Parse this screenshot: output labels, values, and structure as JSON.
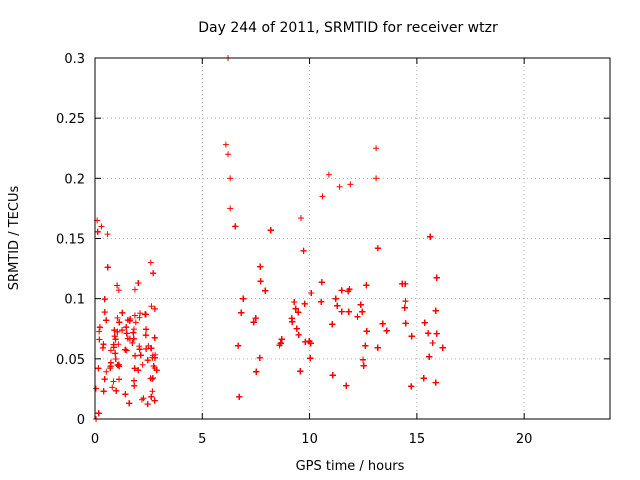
{
  "chart_data": {
    "type": "scatter",
    "title": "Day 244 of 2011, SRMTID for receiver wtzr",
    "xlabel": "GPS time / hours",
    "ylabel": "SRMTID / TECUs",
    "xlim": [
      0,
      24
    ],
    "ylim": [
      0,
      0.3
    ],
    "xticks": [
      0,
      5,
      10,
      15,
      20
    ],
    "yticks": [
      0,
      0.05,
      0.1,
      0.15,
      0.2,
      0.25,
      0.3
    ],
    "xtick_labels": [
      "0",
      "5",
      "10",
      "15",
      "20"
    ],
    "ytick_labels": [
      "0",
      "0.05",
      "0.1",
      "0.15",
      "0.2",
      "0.25",
      "0.3"
    ],
    "grid": true,
    "marker": "+",
    "color": "#ff0000",
    "clusters": [
      {
        "x_range": [
          0.0,
          2.9
        ],
        "y_center": 0.05,
        "y_spread": 0.035,
        "count": 320
      },
      {
        "x_range": [
          6.1,
          16.3
        ],
        "y_center": 0.07,
        "y_spread": 0.04,
        "count": 1100
      }
    ],
    "notable_points": [
      {
        "x": 0.05,
        "y": 0.0
      },
      {
        "x": 0.1,
        "y": 0.165
      },
      {
        "x": 0.3,
        "y": 0.16
      },
      {
        "x": 2.6,
        "y": 0.13
      },
      {
        "x": 6.2,
        "y": 0.3
      },
      {
        "x": 6.1,
        "y": 0.228
      },
      {
        "x": 6.2,
        "y": 0.22
      },
      {
        "x": 6.3,
        "y": 0.2
      },
      {
        "x": 6.3,
        "y": 0.175
      },
      {
        "x": 10.9,
        "y": 0.203
      },
      {
        "x": 11.4,
        "y": 0.193
      },
      {
        "x": 11.9,
        "y": 0.195
      },
      {
        "x": 13.1,
        "y": 0.225
      },
      {
        "x": 13.1,
        "y": 0.2
      },
      {
        "x": 10.6,
        "y": 0.185
      },
      {
        "x": 9.6,
        "y": 0.167
      }
    ]
  }
}
